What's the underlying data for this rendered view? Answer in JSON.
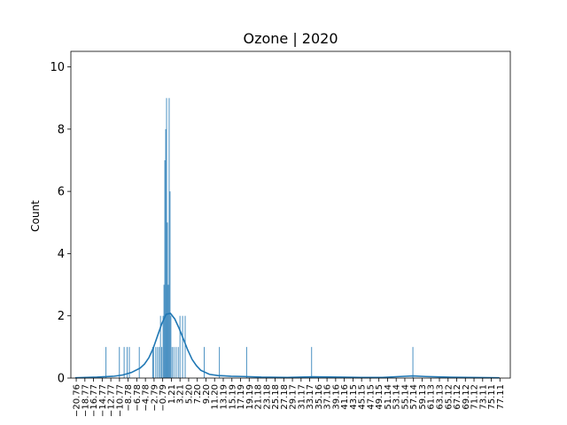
{
  "chart_data": {
    "type": "bar",
    "title": "Ozone | 2020",
    "xlabel": "",
    "ylabel": "Count",
    "ylim": [
      0,
      10.5
    ],
    "xlim": [
      -22.0,
      79.5
    ],
    "yticks": [
      0,
      2,
      4,
      6,
      8,
      10
    ],
    "xtick_labels": [
      "-20.76",
      "-18.77",
      "-16.77",
      "-14.77",
      "-12.77",
      "-10.77",
      "-8.78",
      "-6.78",
      "-4.78",
      "-2.79",
      "-0.79",
      "1.21",
      "3.21",
      "5.20",
      "7.20",
      "9.20",
      "11.20",
      "13.19",
      "15.19",
      "17.19",
      "19.19",
      "21.18",
      "23.18",
      "25.18",
      "27.18",
      "29.17",
      "31.17",
      "33.17",
      "35.16",
      "37.16",
      "39.16",
      "41.16",
      "43.15",
      "45.15",
      "47.15",
      "49.15",
      "51.14",
      "53.14",
      "55.14",
      "57.14",
      "59.13",
      "61.13",
      "63.13",
      "65.12",
      "67.12",
      "69.12",
      "71.12",
      "73.11",
      "75.11",
      "77.11"
    ],
    "bar_color": "#1f77b4",
    "kde_color": "#1f77b4",
    "bins": [
      {
        "x": -13.9,
        "count": 1
      },
      {
        "x": -10.8,
        "count": 1
      },
      {
        "x": -9.7,
        "count": 1
      },
      {
        "x": -9.0,
        "count": 1
      },
      {
        "x": -8.5,
        "count": 1
      },
      {
        "x": -6.2,
        "count": 1
      },
      {
        "x": -3.1,
        "count": 1
      },
      {
        "x": -2.9,
        "count": 1
      },
      {
        "x": -2.4,
        "count": 1
      },
      {
        "x": -2.0,
        "count": 1
      },
      {
        "x": -1.6,
        "count": 1
      },
      {
        "x": -1.3,
        "count": 2
      },
      {
        "x": -1.0,
        "count": 1
      },
      {
        "x": -0.7,
        "count": 2
      },
      {
        "x": -0.5,
        "count": 3
      },
      {
        "x": -0.3,
        "count": 7
      },
      {
        "x": -0.1,
        "count": 8
      },
      {
        "x": 0.1,
        "count": 9
      },
      {
        "x": 0.3,
        "count": 5
      },
      {
        "x": 0.5,
        "count": 3
      },
      {
        "x": 0.7,
        "count": 9
      },
      {
        "x": 0.9,
        "count": 6
      },
      {
        "x": 1.1,
        "count": 2
      },
      {
        "x": 1.4,
        "count": 1
      },
      {
        "x": 1.8,
        "count": 1
      },
      {
        "x": 2.3,
        "count": 1
      },
      {
        "x": 2.8,
        "count": 1
      },
      {
        "x": 3.2,
        "count": 2
      },
      {
        "x": 3.8,
        "count": 2
      },
      {
        "x": 4.4,
        "count": 2
      },
      {
        "x": 8.8,
        "count": 1
      },
      {
        "x": 12.3,
        "count": 1
      },
      {
        "x": 18.6,
        "count": 1
      },
      {
        "x": 33.6,
        "count": 1
      },
      {
        "x": 57.0,
        "count": 1
      }
    ],
    "kde": {
      "x": [
        -21,
        -16,
        -12,
        -10,
        -8,
        -6,
        -5,
        -4,
        -3,
        -2,
        -1,
        0,
        1,
        2,
        3,
        4,
        5,
        6,
        7,
        8,
        10,
        12,
        15,
        18,
        22,
        28,
        34,
        40,
        45,
        50,
        54,
        57,
        60,
        65,
        70,
        77
      ],
      "y": [
        0.01,
        0.03,
        0.06,
        0.1,
        0.18,
        0.32,
        0.45,
        0.65,
        0.95,
        1.35,
        1.75,
        2.05,
        2.08,
        1.9,
        1.6,
        1.25,
        0.9,
        0.6,
        0.4,
        0.25,
        0.12,
        0.08,
        0.06,
        0.05,
        0.03,
        0.02,
        0.04,
        0.03,
        0.02,
        0.02,
        0.05,
        0.07,
        0.05,
        0.03,
        0.02,
        0.01
      ]
    }
  }
}
